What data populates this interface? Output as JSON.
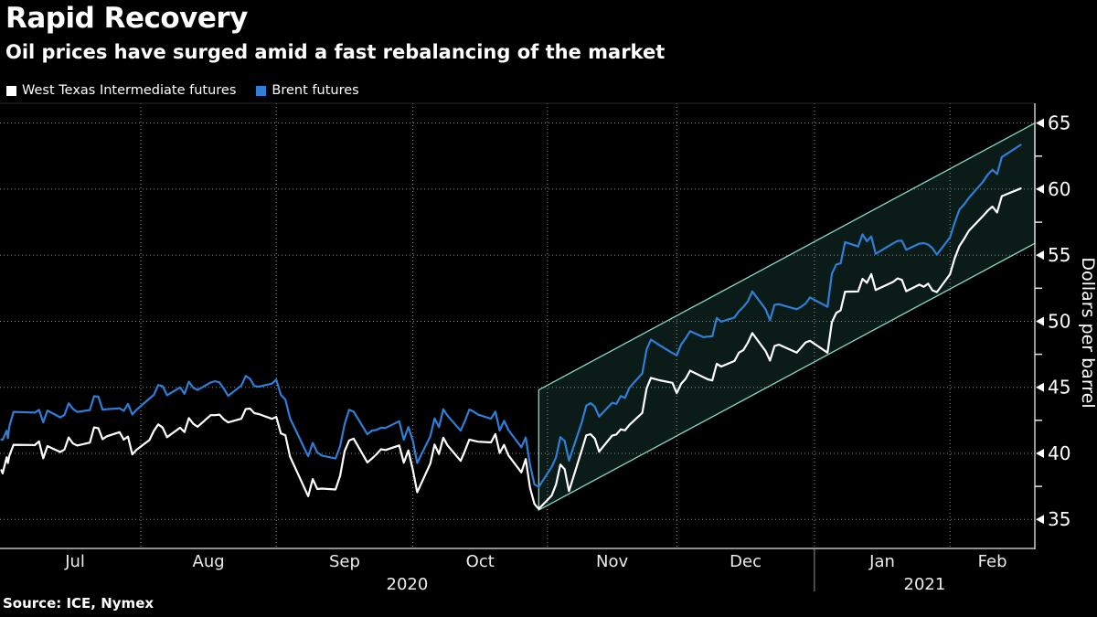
{
  "header": {
    "title": "Rapid Recovery",
    "subtitle": "Oil prices have surged amid a fast rebalancing of the market"
  },
  "legend": [
    {
      "label": "West Texas Intermediate futures",
      "color": "#ffffff"
    },
    {
      "label": "Brent futures",
      "color": "#2f7ed8"
    }
  ],
  "footer": {
    "source": "Source: ICE, Nymex"
  },
  "colors": {
    "background": "#000000",
    "grid": "#8c8c8c",
    "axis": "#e6e6e6",
    "text": "#ffffff",
    "top_border": "#2a2a2a",
    "year_separator": "#8f8f8f"
  },
  "chart_data": {
    "type": "line",
    "title": "Rapid Recovery",
    "xlabel": "",
    "ylabel": "Dollars per barrel",
    "ylim": [
      32.8,
      66.5
    ],
    "grid": "dotted",
    "legend_position": "top-left",
    "y_major_ticks": [
      35,
      40,
      45,
      50,
      55,
      60,
      65
    ],
    "y_minor_ticks": [
      37.5,
      42.5,
      47.5,
      52.5,
      57.5,
      62.5
    ],
    "x_month_labels": [
      "Jul",
      "Aug",
      "Sep",
      "Oct",
      "Nov",
      "Dec",
      "Jan",
      "Feb"
    ],
    "x_year_labels": [
      "2020",
      "2021"
    ],
    "x_boundaries": [
      {
        "d": "2020-06-24",
        "f": 0.0
      },
      {
        "d": "2020-07-01",
        "f": 0.009
      },
      {
        "d": "2020-08-01",
        "f": 0.136
      },
      {
        "d": "2020-09-01",
        "f": 0.267
      },
      {
        "d": "2020-10-01",
        "f": 0.399
      },
      {
        "d": "2020-11-01",
        "f": 0.529
      },
      {
        "d": "2020-12-01",
        "f": 0.654
      },
      {
        "d": "2021-01-01",
        "f": 0.787
      },
      {
        "d": "2021-02-01",
        "f": 0.918
      },
      {
        "d": "2021-02-19",
        "f": 1.0
      }
    ],
    "year_separator_fraction": 0.787,
    "annotation_channel": {
      "start_date": "2020-10-30",
      "top_start": 44.8,
      "top_end": 65.0,
      "bottom_start": 35.7,
      "bottom_end": 55.9,
      "fill": "rgba(78,190,173,0.14)",
      "stroke": "#86d7c4"
    },
    "trading_days": [
      {
        "m": "2020-06",
        "days": [
          25,
          26,
          29,
          30
        ]
      },
      {
        "m": "2020-07",
        "days": [
          1,
          2,
          6,
          7,
          8,
          9,
          10,
          13,
          14,
          15,
          16,
          17,
          20,
          21,
          22,
          23,
          24,
          27,
          28,
          29,
          30,
          31
        ]
      },
      {
        "m": "2020-08",
        "days": [
          3,
          4,
          5,
          6,
          7,
          10,
          11,
          12,
          13,
          14,
          17,
          18,
          19,
          20,
          21,
          24,
          25,
          26,
          27,
          28,
          31
        ]
      },
      {
        "m": "2020-09",
        "days": [
          1,
          2,
          3,
          4,
          8,
          9,
          10,
          11,
          14,
          15,
          16,
          17,
          18,
          21,
          22,
          23,
          24,
          25,
          28,
          29,
          30
        ]
      },
      {
        "m": "2020-10",
        "days": [
          1,
          2,
          5,
          6,
          7,
          8,
          9,
          12,
          13,
          14,
          15,
          16,
          19,
          20,
          21,
          22,
          23,
          26,
          27,
          28,
          29,
          30
        ]
      },
      {
        "m": "2020-11",
        "days": [
          2,
          3,
          4,
          5,
          6,
          9,
          10,
          11,
          12,
          13,
          16,
          17,
          18,
          19,
          20,
          23,
          24,
          25,
          27,
          30
        ]
      },
      {
        "m": "2020-12",
        "days": [
          1,
          2,
          3,
          4,
          7,
          8,
          9,
          10,
          11,
          14,
          15,
          16,
          17,
          18,
          21,
          22,
          23,
          24,
          28,
          29,
          30,
          31
        ]
      },
      {
        "m": "2021-01",
        "days": [
          4,
          5,
          6,
          7,
          8,
          11,
          12,
          13,
          14,
          15,
          19,
          20,
          21,
          22,
          25,
          26,
          27,
          28,
          29
        ]
      },
      {
        "m": "2021-02",
        "days": [
          1,
          2,
          3,
          4,
          5,
          8,
          9,
          10,
          11,
          12,
          16
        ]
      }
    ],
    "series": [
      {
        "name": "West Texas Intermediate futures",
        "color": "#ffffff",
        "values": [
          38.72,
          38.49,
          39.7,
          39.27,
          39.82,
          40.65,
          40.63,
          40.62,
          40.9,
          39.62,
          40.55,
          40.1,
          40.29,
          41.2,
          40.75,
          40.59,
          40.81,
          41.96,
          41.9,
          41.07,
          41.29,
          41.6,
          41.04,
          41.27,
          39.92,
          40.27,
          41.01,
          41.7,
          42.19,
          41.95,
          41.22,
          41.94,
          41.61,
          42.67,
          42.24,
          42.01,
          42.89,
          42.89,
          42.93,
          42.58,
          42.34,
          42.62,
          43.35,
          43.39,
          43.04,
          42.97,
          42.61,
          42.76,
          41.51,
          41.37,
          39.77,
          36.76,
          38.05,
          37.3,
          37.33,
          37.26,
          38.28,
          40.16,
          40.97,
          41.11,
          39.31,
          39.6,
          39.93,
          40.31,
          40.25,
          40.6,
          39.29,
          40.22,
          38.72,
          37.05,
          39.22,
          40.67,
          39.95,
          41.19,
          40.6,
          39.43,
          40.2,
          41.04,
          40.96,
          40.88,
          40.83,
          41.46,
          40.03,
          40.64,
          39.85,
          38.56,
          39.57,
          37.39,
          36.17,
          35.79,
          36.81,
          37.66,
          39.15,
          38.79,
          37.14,
          40.29,
          41.36,
          41.45,
          41.12,
          40.13,
          41.34,
          41.43,
          41.82,
          41.74,
          42.15,
          43.06,
          44.91,
          45.71,
          45.53,
          45.34,
          44.55,
          45.28,
          45.64,
          46.26,
          45.76,
          45.6,
          45.52,
          46.78,
          46.57,
          46.99,
          47.62,
          47.82,
          48.36,
          49.1,
          47.74,
          47.02,
          48.12,
          48.23,
          47.62,
          48.0,
          48.4,
          48.52,
          47.62,
          49.93,
          50.63,
          50.83,
          52.24,
          52.25,
          53.21,
          52.91,
          53.57,
          52.36,
          52.98,
          53.24,
          53.13,
          52.27,
          52.77,
          52.61,
          52.85,
          52.34,
          52.2,
          53.55,
          54.76,
          55.69,
          56.23,
          56.85,
          57.97,
          58.36,
          58.68,
          58.24,
          59.47,
          60.05
        ]
      },
      {
        "name": "Brent futures",
        "color": "#2f7ed8",
        "values": [
          41.05,
          41.02,
          41.71,
          41.15,
          42.03,
          43.14,
          43.1,
          43.08,
          43.29,
          42.35,
          43.24,
          42.72,
          42.9,
          43.79,
          43.37,
          43.14,
          43.28,
          44.32,
          44.29,
          43.31,
          43.34,
          43.41,
          43.22,
          43.75,
          42.94,
          43.3,
          44.15,
          44.43,
          45.17,
          45.09,
          44.4,
          44.99,
          44.5,
          45.43,
          44.96,
          44.8,
          45.37,
          45.46,
          45.37,
          44.9,
          44.35,
          45.13,
          45.86,
          45.64,
          45.09,
          45.05,
          45.28,
          45.58,
          44.43,
          44.07,
          42.66,
          39.78,
          40.79,
          40.06,
          39.83,
          39.61,
          40.53,
          42.22,
          43.3,
          43.15,
          41.44,
          41.72,
          41.77,
          41.94,
          41.92,
          42.43,
          41.03,
          42.0,
          40.93,
          39.27,
          41.29,
          42.65,
          41.99,
          43.34,
          42.85,
          41.72,
          42.45,
          43.32,
          43.16,
          42.93,
          42.62,
          43.16,
          41.73,
          42.46,
          41.77,
          40.46,
          41.2,
          39.12,
          37.65,
          37.46,
          38.97,
          39.71,
          41.23,
          40.93,
          39.45,
          42.4,
          43.61,
          43.8,
          43.53,
          42.78,
          43.82,
          43.75,
          44.34,
          44.2,
          44.96,
          46.06,
          47.86,
          48.61,
          48.18,
          47.59,
          47.42,
          48.25,
          48.71,
          49.25,
          48.79,
          48.84,
          48.86,
          50.25,
          49.97,
          50.29,
          50.76,
          51.08,
          51.5,
          52.26,
          50.91,
          50.08,
          51.24,
          51.29,
          50.91,
          51.09,
          51.34,
          51.8,
          51.09,
          53.6,
          54.3,
          54.38,
          55.99,
          55.66,
          56.58,
          56.06,
          56.42,
          55.1,
          55.9,
          56.08,
          56.1,
          55.41,
          55.88,
          55.91,
          55.81,
          55.53,
          55.04,
          56.35,
          57.46,
          58.46,
          58.84,
          59.34,
          60.56,
          61.09,
          61.47,
          61.14,
          62.43,
          63.35
        ]
      }
    ]
  }
}
